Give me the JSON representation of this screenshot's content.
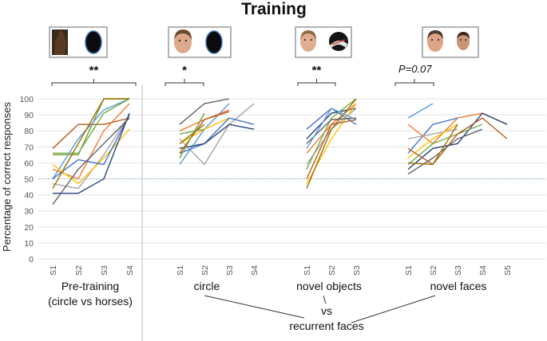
{
  "title": "Training",
  "chart_data": {
    "type": "line",
    "ylabel": "Percentage of correct responses",
    "ylim": [
      0,
      100
    ],
    "yticks": [
      0,
      10,
      20,
      30,
      40,
      50,
      60,
      70,
      80,
      90,
      100
    ],
    "chance_level": 50,
    "grid": true,
    "panels": [
      {
        "label": "Pre-training",
        "label2": "(circle vs horses)",
        "x": [
          "S1",
          "S2",
          "S3",
          "S4"
        ],
        "significance": "**",
        "series": [
          {
            "color": "#b85c1e",
            "values": [
              69,
              84,
              84,
              88
            ]
          },
          {
            "color": "#7a9a3a",
            "values": [
              65,
              65,
              100,
              100
            ]
          },
          {
            "color": "#5b9bd5",
            "values": [
              50,
              75,
              93,
              100
            ]
          },
          {
            "color": "#ed7d31",
            "values": [
              56,
              50,
              80,
              97
            ]
          },
          {
            "color": "#a5a5a5",
            "values": [
              47,
              44,
              65,
              90
            ]
          },
          {
            "color": "#ffc000",
            "values": [
              59,
              47,
              63,
              81
            ]
          },
          {
            "color": "#4472c4",
            "values": [
              50,
              62,
              59,
              90
            ]
          },
          {
            "color": "#264478",
            "values": [
              41,
              41,
              50,
              91
            ]
          },
          {
            "color": "#636363",
            "values": [
              34,
              56,
              72,
              88
            ]
          },
          {
            "color": "#70ad47",
            "values": [
              66,
              66,
              91,
              100
            ]
          },
          {
            "color": "#997300",
            "values": [
              44,
              72,
              100,
              100
            ]
          }
        ]
      },
      {
        "label": "circle",
        "x": [
          "S1",
          "S2",
          "S3",
          "S4"
        ],
        "significance": "*",
        "series": [
          {
            "color": "#ed7d31",
            "values": [
              80,
              87,
              93
            ]
          },
          {
            "color": "#a5a5a5",
            "values": [
              75,
              59,
              84,
              97
            ]
          },
          {
            "color": "#5b9bd5",
            "values": [
              59,
              81,
              97
            ]
          },
          {
            "color": "#ffc000",
            "values": [
              72,
              81,
              88
            ]
          },
          {
            "color": "#4472c4",
            "values": [
              66,
              72,
              88,
              84
            ]
          },
          {
            "color": "#264478",
            "values": [
              69,
              72,
              84,
              81
            ]
          },
          {
            "color": "#636363",
            "values": [
              84,
              97,
              100
            ]
          },
          {
            "color": "#70ad47",
            "values": [
              78,
              81
            ]
          },
          {
            "color": "#997300",
            "values": [
              72,
              84
            ]
          },
          {
            "color": "#b85c1e",
            "values": [
              66,
              87,
              92
            ]
          },
          {
            "color": "#7a9a3a",
            "values": [
              63,
              91
            ]
          }
        ]
      },
      {
        "label": "novel objects",
        "x": [
          "S1",
          "S2",
          "S3"
        ],
        "significance": "**",
        "series": [
          {
            "color": "#4472c4",
            "values": [
              81,
              94,
              84
            ]
          },
          {
            "color": "#264478",
            "values": [
              75,
              91,
              94
            ]
          },
          {
            "color": "#ed7d31",
            "values": [
              66,
              84,
              97
            ]
          },
          {
            "color": "#a5a5a5",
            "values": [
              59,
              81,
              94
            ]
          },
          {
            "color": "#ffc000",
            "values": [
              47,
              75,
              97
            ]
          },
          {
            "color": "#70ad47",
            "values": [
              56,
              88,
              100
            ]
          },
          {
            "color": "#997300",
            "values": [
              44,
              81,
              100
            ]
          },
          {
            "color": "#636363",
            "values": [
              72,
              87,
              88
            ]
          },
          {
            "color": "#b85c1e",
            "values": [
              50,
              84,
              87
            ]
          },
          {
            "color": "#5b9bd5",
            "values": [
              69,
              94,
              87
            ]
          }
        ]
      },
      {
        "label": "novel faces",
        "x": [
          "S1",
          "S2",
          "S3",
          "S4",
          "S5"
        ],
        "significance": "P=0.07",
        "series": [
          {
            "color": "#5b9bd5",
            "values": [
              88,
              97
            ]
          },
          {
            "color": "#ed7d31",
            "values": [
              84,
              72,
              88,
              91,
              84
            ]
          },
          {
            "color": "#4472c4",
            "values": [
              66,
              84,
              88
            ]
          },
          {
            "color": "#a5a5a5",
            "values": [
              75,
              78,
              81
            ]
          },
          {
            "color": "#ffc000",
            "values": [
              63,
              75,
              84
            ]
          },
          {
            "color": "#264478",
            "values": [
              56,
              69,
              72,
              91,
              84
            ]
          },
          {
            "color": "#70ad47",
            "values": [
              59,
              72,
              78,
              84
            ]
          },
          {
            "color": "#b85c1e",
            "values": [
              69,
              59,
              78,
              88,
              75
            ]
          },
          {
            "color": "#636363",
            "values": [
              53,
              63,
              75,
              81
            ]
          },
          {
            "color": "#997300",
            "values": [
              60,
              59,
              84
            ]
          }
        ]
      }
    ],
    "annotation": {
      "line1": "vs",
      "line2": "recurrent faces"
    }
  }
}
